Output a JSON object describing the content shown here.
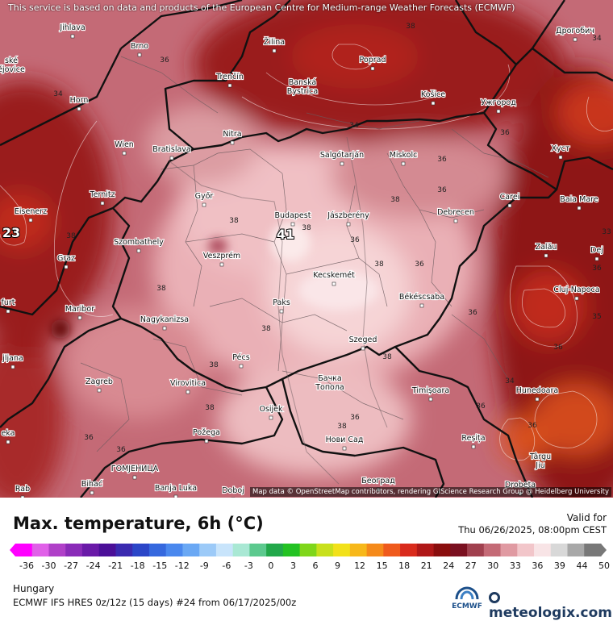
{
  "disclaimer": "This service is based on data and products of the European Centre for Medium-range Weather Forecasts (ECMWF)",
  "attribution": "Map data © OpenStreetMap contributors, rendering GIScience Research Group @ Heidelberg University",
  "title": "Max. temperature, 6h (°C)",
  "valid_label": "Valid for",
  "valid_time": "Thu 06/26/2025, 08:00pm CEST",
  "region": "Hungary",
  "model_run": "ECMWF IFS HRES 0z/12z (15 days) #24 from  06/17/2025/00z",
  "ecmwf_logo_text": "ECMWF",
  "brand": "meteologix.com",
  "colorbar": {
    "ticks": [
      "-36",
      "-30",
      "-27",
      "-24",
      "-21",
      "-18",
      "-15",
      "-12",
      "-9",
      "-6",
      "-3",
      "0",
      "3",
      "6",
      "9",
      "12",
      "15",
      "18",
      "21",
      "24",
      "27",
      "30",
      "33",
      "36",
      "39",
      "44",
      "50"
    ],
    "colors": [
      "#ff00ff",
      "#e060e8",
      "#b040c8",
      "#8a2bb8",
      "#6a1aa8",
      "#4b0f98",
      "#3a2ab0",
      "#2b46c8",
      "#3568de",
      "#4a88ee",
      "#6aa8f4",
      "#9ccaf8",
      "#c8e4fb",
      "#a9e8d4",
      "#5cc98e",
      "#22a84a",
      "#23c223",
      "#7fd61a",
      "#c8e01c",
      "#f2e11a",
      "#f7b81a",
      "#f58a1a",
      "#ef5a1c",
      "#d92b1c",
      "#b01818",
      "#8a0e0e",
      "#7a1020",
      "#a0404e",
      "#c46a76",
      "#e09aa2",
      "#f2c6ca",
      "#f8e4e6",
      "#d8d8d8",
      "#a8a8a8",
      "#787878"
    ]
  },
  "cities": [
    {
      "name": "Jihlava"
    },
    {
      "name": "Brno"
    },
    {
      "name": "Žilina"
    },
    {
      "name": "Poprad"
    },
    {
      "name": "Дрогобич"
    },
    {
      "name": "ské\nějovice"
    },
    {
      "name": "Trenčín"
    },
    {
      "name": "Banská\nBystrica"
    },
    {
      "name": "Košice"
    },
    {
      "name": "Ужгород"
    },
    {
      "name": "Horn"
    },
    {
      "name": "Nitra"
    },
    {
      "name": "Wien"
    },
    {
      "name": "Bratislava"
    },
    {
      "name": "Salgótarján"
    },
    {
      "name": "Miskolc"
    },
    {
      "name": "Хуст"
    },
    {
      "name": "Ternitz"
    },
    {
      "name": "Győr"
    },
    {
      "name": "Carei"
    },
    {
      "name": "Baia Mare"
    },
    {
      "name": "Eisenerz"
    },
    {
      "name": "Budapest"
    },
    {
      "name": "Jászberény"
    },
    {
      "name": "Debrecen"
    },
    {
      "name": "Szombathely"
    },
    {
      "name": "Graz"
    },
    {
      "name": "Veszprém"
    },
    {
      "name": "Zalău"
    },
    {
      "name": "Dej"
    },
    {
      "name": "Kecskemét"
    },
    {
      "name": "Cluj-Napoca"
    },
    {
      "name": "furt"
    },
    {
      "name": "Maribor"
    },
    {
      "name": "Paks"
    },
    {
      "name": "Békéscsaba"
    },
    {
      "name": "Nagykanizsa"
    },
    {
      "name": "Szeged"
    },
    {
      "name": "jljana"
    },
    {
      "name": "Pécs"
    },
    {
      "name": "Бачка\nТопола"
    },
    {
      "name": "Zagreb"
    },
    {
      "name": "Virovitica"
    },
    {
      "name": "Timișoara"
    },
    {
      "name": "Hunedoara"
    },
    {
      "name": "Osijek"
    },
    {
      "name": "Požega"
    },
    {
      "name": "Нови Сад"
    },
    {
      "name": "Reșița"
    },
    {
      "name": "eka"
    },
    {
      "name": "Târgu\nJiu"
    },
    {
      "name": "ГОМЈЕНИЦА"
    },
    {
      "name": "Bihać"
    },
    {
      "name": "Banja Luka"
    },
    {
      "name": "Doboj"
    },
    {
      "name": "Београд"
    },
    {
      "name": "Drobeta"
    },
    {
      "name": "Rab"
    }
  ],
  "value_labels": [
    "36",
    "38",
    "34",
    "38",
    "36",
    "34",
    "36",
    "38",
    "33",
    "36",
    "36",
    "36",
    "38",
    "38",
    "36",
    "38",
    "36",
    "36",
    "34",
    "36",
    "38",
    "36",
    "38",
    "36",
    "38",
    "36",
    "38",
    "38",
    "38",
    "36",
    "34",
    "35"
  ],
  "highlight_labels": [
    "23",
    "41"
  ]
}
